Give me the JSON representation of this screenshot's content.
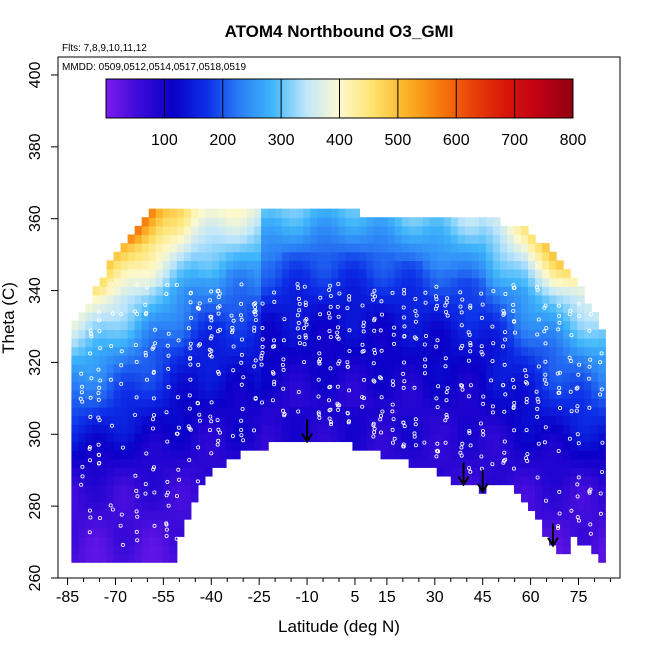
{
  "chart_data": {
    "type": "heatmap",
    "title": "ATOM4 Northbound O3_GMI",
    "flights_note": "Flts: 7,8,9,10,11,12",
    "dates_note": "MMDD: 0509,0512,0514,0517,0518,0519",
    "xlabel": "Latitude (deg N)",
    "ylabel": "Theta (C)",
    "xlim": [
      -88,
      88
    ],
    "ylim": [
      260,
      405
    ],
    "x_ticks": [
      -85,
      -70,
      -55,
      -40,
      -25,
      -10,
      5,
      15,
      30,
      45,
      60,
      75
    ],
    "y_ticks": [
      260,
      280,
      300,
      320,
      340,
      360,
      380,
      400
    ],
    "colorbar": {
      "min": 0,
      "max": 800,
      "ticks": [
        100,
        200,
        300,
        400,
        500,
        600,
        700,
        800
      ],
      "colors": [
        "#7b1cf0",
        "#3a0ad8",
        "#0a00c8",
        "#0c2ee6",
        "#2a7df5",
        "#3fb6fb",
        "#bfe6fb",
        "#fdf9ce",
        "#fde36e",
        "#fcb327",
        "#f77a0d",
        "#e84209",
        "#d71509",
        "#c00015",
        "#8e0010"
      ]
    },
    "arrows": [
      {
        "lat": -10,
        "theta": 298
      },
      {
        "lat": 39,
        "theta": 286
      },
      {
        "lat": 45,
        "theta": 284
      },
      {
        "lat": 67,
        "theta": 269
      }
    ],
    "lower_boundary": {
      "lat": [
        -85,
        -52,
        -52,
        -48,
        -42,
        -32,
        -25,
        -18,
        -10,
        -5,
        5,
        12,
        22,
        30,
        37,
        44,
        52,
        57,
        61,
        65,
        70,
        74,
        76,
        79,
        83
      ],
      "theta": [
        265,
        265,
        265,
        276,
        288,
        294,
        296,
        297.5,
        299,
        298.5,
        296.5,
        294.5,
        292,
        289.5,
        286.5,
        284.5,
        286,
        283,
        277.5,
        272,
        266.5,
        271,
        268,
        268,
        265
      ]
    },
    "upper_boundary": {
      "lat": [
        -83,
        -76,
        -70,
        -64,
        -58,
        -45,
        0,
        55,
        60,
        65,
        70,
        74,
        77,
        80,
        83
      ],
      "theta": [
        330,
        341,
        350,
        358,
        363,
        363,
        362,
        359,
        356,
        352,
        348,
        344,
        339,
        333,
        327
      ]
    }
  }
}
